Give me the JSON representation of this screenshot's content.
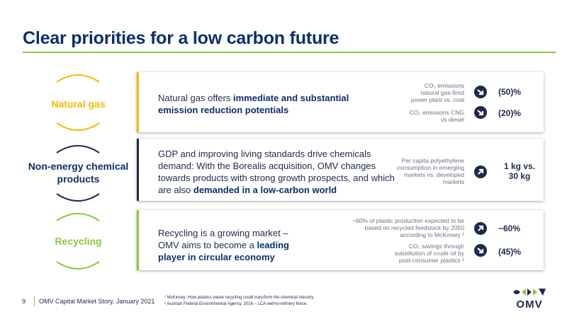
{
  "title": "Clear priorities for a low carbon future",
  "colors": {
    "yellow": "#f7b800",
    "navy": "#1d2a4d",
    "green": "#8dc63f",
    "title": "#0c2f6b"
  },
  "rows": [
    {
      "label": "Natural gas",
      "text_plain": "Natural gas offers ",
      "text_bold": "immediate and substantial emission reduction potentials",
      "stats": [
        {
          "desc": "CO₂ emissions natural gas-fired power plant vs. coal",
          "icon": "arrow-down-icon",
          "value": "(50)%"
        },
        {
          "desc": "CO₂ emissions CNG vs diesel",
          "icon": "arrow-down-icon",
          "value": "(20)%"
        }
      ]
    },
    {
      "label": "Non-energy chemical products",
      "text_plain": "GDP and improving living standards drive chemicals demand: With the Borealis acquisition, OMV changes towards products with strong growth prospects, and which are also ",
      "text_bold": "demanded in a low-carbon world",
      "stats": [
        {
          "desc": "Per capita polyethylene consumption in emerging markets vs. developed markets",
          "icon": "arrow-up-icon",
          "value": "1 kg vs. 30 kg"
        }
      ]
    },
    {
      "label": "Recycling",
      "text_plain": "Recycling is a growing market – OMV aims to become a ",
      "text_bold": "leading player in circular economy",
      "stats": [
        {
          "desc": "~60% of plastic production expected to be based on recycled feedstock by 2050 according to McKinsey ¹",
          "icon": "arrow-up-icon",
          "value": "~60%"
        },
        {
          "desc": "CO₂ savings through substitution of crude oil by post-consumer plastics ²",
          "icon": "arrow-down-icon",
          "value": "(45)%"
        }
      ]
    }
  ],
  "footer": {
    "page": "9",
    "text": "OMV Capital Market Story, January 2021",
    "footnote1": "¹ McKinsey: How plastics waste recycling could transform the chemical industry",
    "footnote2": "² Austrian Federal Environmental Agency. 2016 – LCA well-to-refinery fence."
  },
  "logo": {
    "text": "OMV"
  }
}
